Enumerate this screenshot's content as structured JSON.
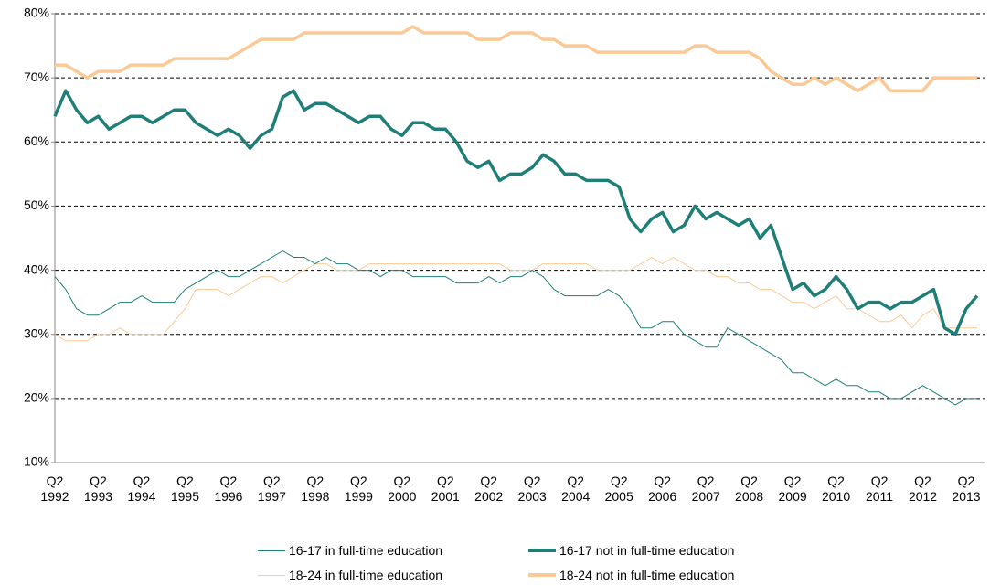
{
  "chart_data": {
    "type": "line",
    "categories": [
      "Q2 1992",
      null,
      null,
      null,
      "Q2 1993",
      null,
      null,
      null,
      "Q2 1994",
      null,
      null,
      null,
      "Q2 1995",
      null,
      null,
      null,
      "Q2 1996",
      null,
      null,
      null,
      "Q2 1997",
      null,
      null,
      null,
      "Q2 1998",
      null,
      null,
      null,
      "Q2 1999",
      null,
      null,
      null,
      "Q2 2000",
      null,
      null,
      null,
      "Q2 2001",
      null,
      null,
      null,
      "Q2 2002",
      null,
      null,
      null,
      "Q2 2003",
      null,
      null,
      null,
      "Q2 2004",
      null,
      null,
      null,
      "Q2 2005",
      null,
      null,
      null,
      "Q2 2006",
      null,
      null,
      null,
      "Q2 2007",
      null,
      null,
      null,
      "Q2 2008",
      null,
      null,
      null,
      "Q2 2009",
      null,
      null,
      null,
      "Q2 2010",
      null,
      null,
      null,
      "Q2 2011",
      null,
      null,
      null,
      "Q2 2012",
      null,
      null,
      null,
      "Q2 2013",
      null
    ],
    "series": [
      {
        "name": "16-17 in full-time education",
        "color": "#1f7f78",
        "width": 1,
        "values": [
          39,
          37,
          34,
          33,
          33,
          34,
          35,
          35,
          36,
          35,
          35,
          35,
          37,
          38,
          39,
          40,
          39,
          39,
          40,
          41,
          42,
          43,
          42,
          42,
          41,
          42,
          41,
          41,
          40,
          40,
          39,
          40,
          40,
          39,
          39,
          39,
          39,
          38,
          38,
          38,
          39,
          38,
          39,
          39,
          40,
          39,
          37,
          36,
          36,
          36,
          36,
          37,
          36,
          34,
          31,
          31,
          32,
          32,
          30,
          29,
          28,
          28,
          31,
          30,
          29,
          28,
          27,
          26,
          24,
          24,
          23,
          22,
          23,
          22,
          22,
          21,
          21,
          20,
          20,
          21,
          22,
          21,
          20,
          19,
          20,
          20
        ]
      },
      {
        "name": "16-17 not in full-time education",
        "color": "#1f7f78",
        "width": 3.5,
        "values": [
          64,
          68,
          65,
          63,
          64,
          62,
          63,
          64,
          64,
          63,
          64,
          65,
          65,
          63,
          62,
          61,
          62,
          61,
          59,
          61,
          62,
          67,
          68,
          65,
          66,
          66,
          65,
          64,
          63,
          64,
          64,
          62,
          61,
          63,
          63,
          62,
          62,
          60,
          57,
          56,
          57,
          54,
          55,
          55,
          56,
          58,
          57,
          55,
          55,
          54,
          54,
          54,
          53,
          48,
          46,
          48,
          49,
          46,
          47,
          50,
          48,
          49,
          48,
          47,
          48,
          45,
          47,
          42,
          37,
          38,
          36,
          37,
          39,
          37,
          34,
          35,
          35,
          34,
          35,
          35,
          36,
          37,
          31,
          30,
          34,
          36
        ]
      },
      {
        "name": "18-24 in full-time education",
        "color": "#fbc996",
        "width": 1,
        "values": [
          30,
          29,
          29,
          29,
          30,
          30,
          31,
          30,
          30,
          30,
          30,
          32,
          34,
          37,
          37,
          37,
          36,
          37,
          38,
          39,
          39,
          38,
          39,
          40,
          41,
          41,
          40,
          40,
          40,
          41,
          41,
          41,
          41,
          41,
          41,
          41,
          41,
          41,
          41,
          41,
          41,
          41,
          40,
          40,
          40,
          41,
          41,
          41,
          41,
          41,
          40,
          40,
          40,
          40,
          41,
          42,
          41,
          42,
          41,
          40,
          40,
          39,
          39,
          38,
          38,
          37,
          37,
          36,
          35,
          35,
          34,
          35,
          36,
          34,
          34,
          33,
          32,
          32,
          33,
          31,
          33,
          34,
          31,
          31,
          31,
          31
        ]
      },
      {
        "name": "18-24 not in full-time education",
        "color": "#fbc996",
        "width": 3.5,
        "values": [
          72,
          72,
          71,
          70,
          71,
          71,
          71,
          72,
          72,
          72,
          72,
          73,
          73,
          73,
          73,
          73,
          73,
          74,
          75,
          76,
          76,
          76,
          76,
          77,
          77,
          77,
          77,
          77,
          77,
          77,
          77,
          77,
          77,
          78,
          77,
          77,
          77,
          77,
          77,
          76,
          76,
          76,
          77,
          77,
          77,
          76,
          76,
          75,
          75,
          75,
          74,
          74,
          74,
          74,
          74,
          74,
          74,
          74,
          74,
          75,
          75,
          74,
          74,
          74,
          74,
          73,
          71,
          70,
          69,
          69,
          70,
          69,
          70,
          69,
          68,
          69,
          70,
          68,
          68,
          68,
          68,
          70,
          70,
          70,
          70,
          70
        ]
      }
    ],
    "ylim": [
      10,
      80
    ],
    "yticks": [
      {
        "value": 10,
        "label": "10%"
      },
      {
        "value": 20,
        "label": "20%"
      },
      {
        "value": 30,
        "label": "30%"
      },
      {
        "value": 40,
        "label": "40%"
      },
      {
        "value": 50,
        "label": "50%"
      },
      {
        "value": 60,
        "label": "60%"
      },
      {
        "value": 70,
        "label": "70%"
      },
      {
        "value": 80,
        "label": "80%"
      }
    ],
    "grid": true
  }
}
